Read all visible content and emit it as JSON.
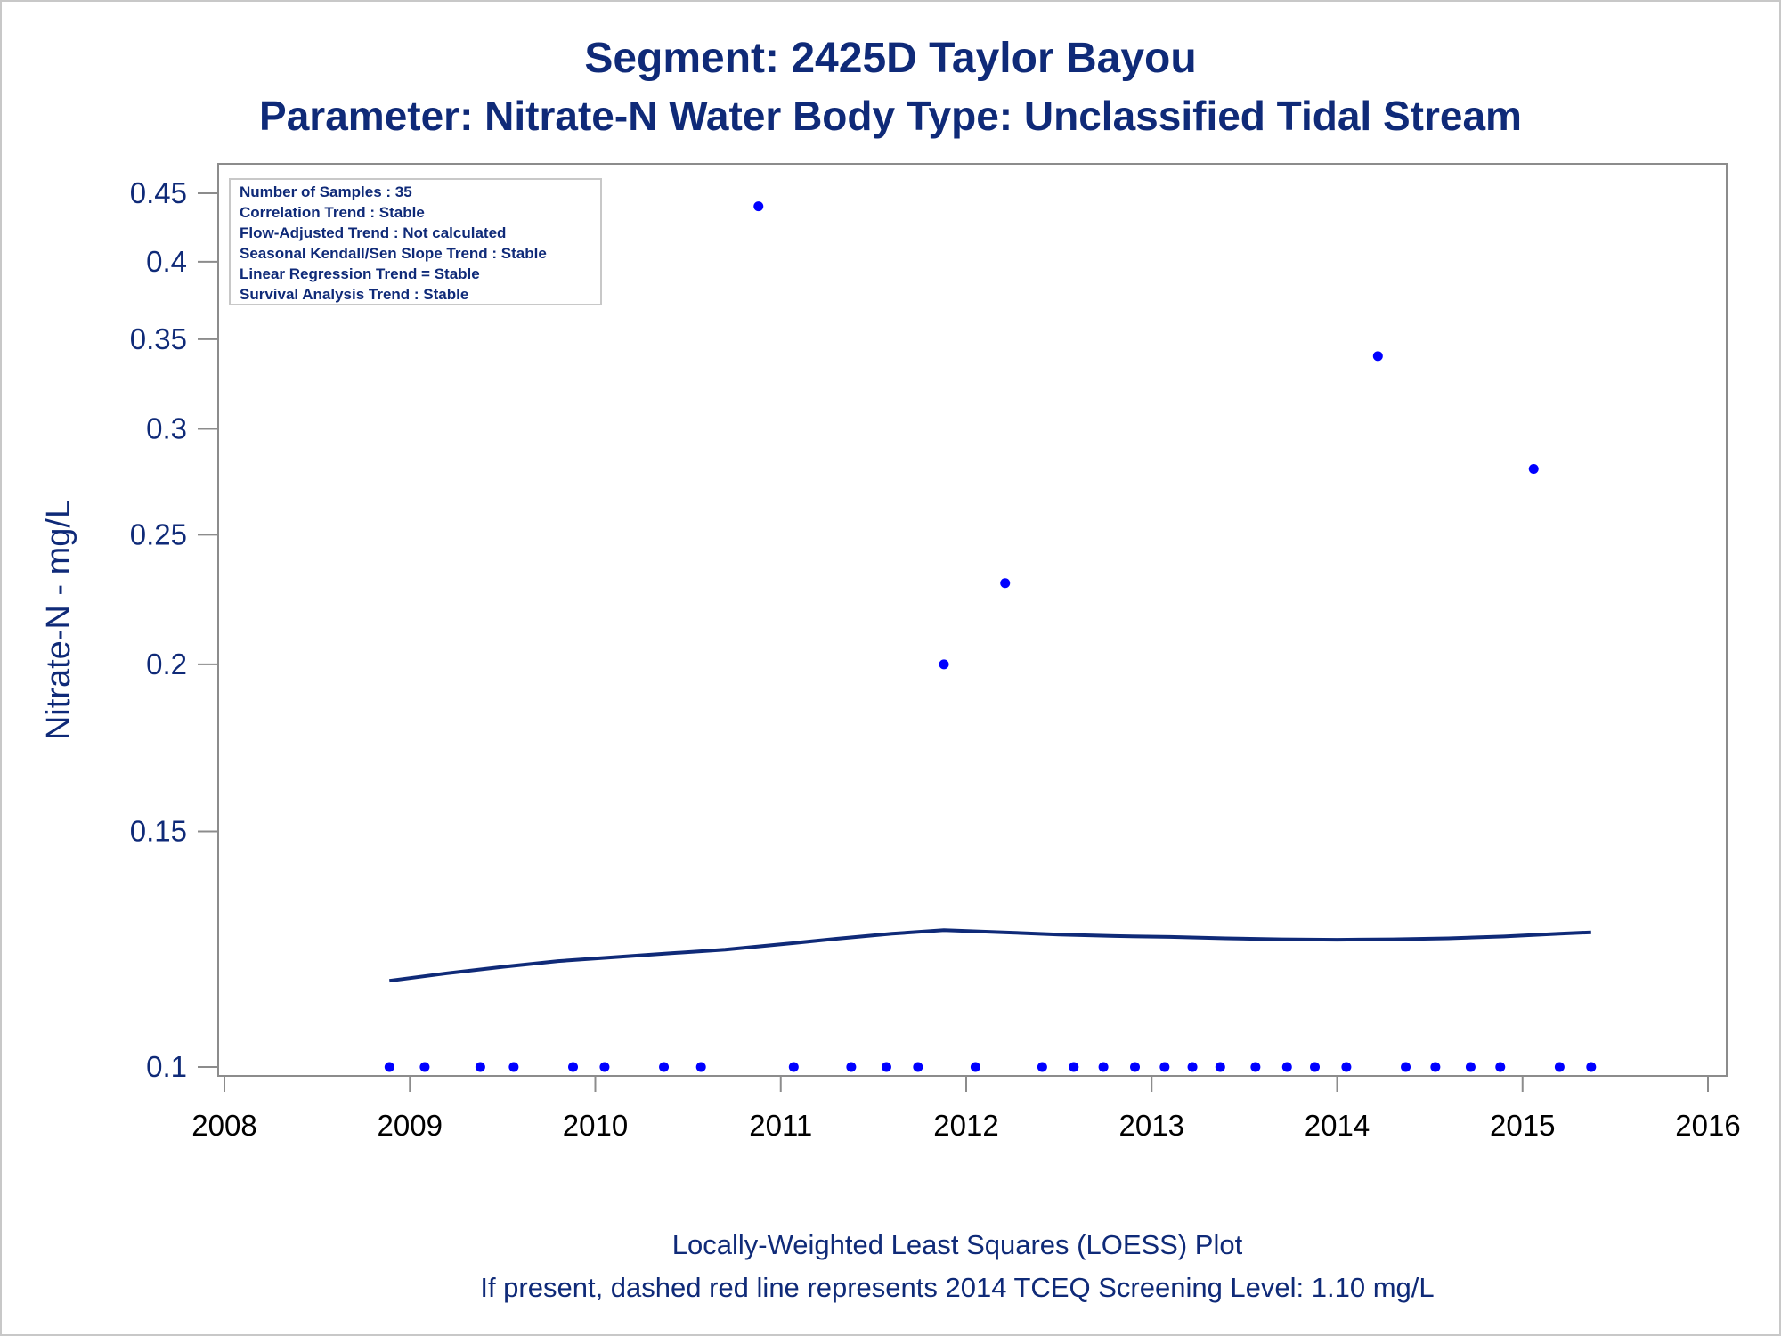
{
  "titles": {
    "line1": "Segment: 2425D  Taylor Bayou",
    "line2": "Parameter: Nitrate-N   Water Body Type: Unclassified Tidal Stream"
  },
  "footnotes": {
    "line1": "Locally-Weighted Least Squares (LOESS) Plot",
    "line2": "If present, dashed red line represents 2014 TCEQ Screening Level: 1.10 mg/L"
  },
  "inset": {
    "lines": [
      "Number of Samples : 35",
      "Correlation Trend : Stable",
      "Flow-Adjusted Trend : Not calculated",
      "Seasonal Kendall/Sen Slope Trend : Stable",
      "Linear Regression Trend = Stable",
      "Survival Analysis Trend : Stable"
    ]
  },
  "colors": {
    "points": "#0000ff",
    "loess": "#0f2a78",
    "text": "#0f2a78",
    "axis": "#8c8c8c"
  },
  "chart_data": {
    "type": "scatter",
    "ylabel": "Nitrate-N - mg/L",
    "xlabel": "",
    "x_scale": "time (year)",
    "y_scale": "log",
    "xlim": [
      2008,
      2016
    ],
    "ylim": [
      0.1,
      0.45
    ],
    "x_ticks": [
      "2008",
      "2009",
      "2010",
      "2011",
      "2012",
      "2013",
      "2014",
      "2015",
      "2016"
    ],
    "y_ticks": [
      "0.1",
      "0.15",
      "0.2",
      "0.25",
      "0.3",
      "0.35",
      "0.4",
      "0.45"
    ],
    "y_tick_values": [
      0.1,
      0.15,
      0.2,
      0.25,
      0.3,
      0.35,
      0.4,
      0.45
    ],
    "grid": false,
    "series": [
      {
        "kind": "points",
        "x": [
          2008.89,
          2009.08,
          2009.38,
          2009.56,
          2009.88,
          2010.05,
          2010.37,
          2010.57,
          2010.88,
          2011.07,
          2011.38,
          2011.57,
          2011.74,
          2011.88,
          2012.05,
          2012.21,
          2012.41,
          2012.58,
          2012.74,
          2012.91,
          2013.07,
          2013.22,
          2013.37,
          2013.56,
          2013.73,
          2013.88,
          2014.05,
          2014.22,
          2014.37,
          2014.53,
          2014.72,
          2014.88,
          2015.06,
          2015.2,
          2015.37
        ],
        "y": [
          0.1,
          0.1,
          0.1,
          0.1,
          0.1,
          0.1,
          0.1,
          0.1,
          0.44,
          0.1,
          0.1,
          0.1,
          0.1,
          0.2,
          0.1,
          0.23,
          0.1,
          0.1,
          0.1,
          0.1,
          0.1,
          0.1,
          0.1,
          0.1,
          0.1,
          0.1,
          0.1,
          0.34,
          0.1,
          0.1,
          0.1,
          0.1,
          0.28,
          0.1,
          0.1
        ]
      },
      {
        "kind": "loess-line",
        "x": [
          2008.89,
          2009.2,
          2009.5,
          2009.8,
          2010.1,
          2010.4,
          2010.7,
          2011.0,
          2011.3,
          2011.6,
          2011.88,
          2012.2,
          2012.5,
          2012.8,
          2013.1,
          2013.4,
          2013.7,
          2014.0,
          2014.3,
          2014.6,
          2014.9,
          2015.2,
          2015.37
        ],
        "y": [
          0.116,
          0.1175,
          0.1188,
          0.12,
          0.1208,
          0.1216,
          0.1224,
          0.1235,
          0.1247,
          0.1258,
          0.1266,
          0.1261,
          0.1256,
          0.1253,
          0.1251,
          0.1248,
          0.1246,
          0.1245,
          0.1246,
          0.1248,
          0.1252,
          0.1258,
          0.1261
        ]
      }
    ]
  }
}
